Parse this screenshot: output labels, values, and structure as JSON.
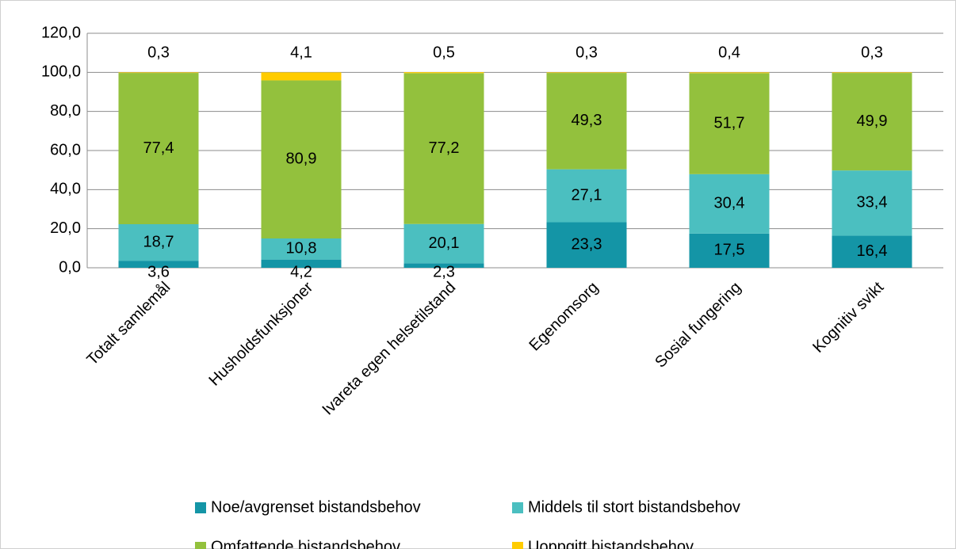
{
  "chart_data": {
    "type": "stacked_bar",
    "categories": [
      "Totalt samlemål",
      "Husholdsfunksjoner",
      "Ivareta egen helsetilstand",
      "Egenomsorg",
      "Sosial fungering",
      "Kognitiv svikt"
    ],
    "series": [
      {
        "name": "Noe/avgrenset bistandsbehov",
        "color": "#1495a6",
        "values": [
          3.6,
          4.2,
          2.3,
          23.3,
          17.5,
          16.4
        ],
        "value_labels": [
          "3,6",
          "4,2",
          "2,3",
          "23,3",
          "17,5",
          "16,4"
        ]
      },
      {
        "name": "Middels til stort bistandsbehov",
        "color": "#4bbfc0",
        "values": [
          18.7,
          10.8,
          20.1,
          27.1,
          30.4,
          33.4
        ],
        "value_labels": [
          "18,7",
          "10,8",
          "20,1",
          "27,1",
          "30,4",
          "33,4"
        ]
      },
      {
        "name": "Omfattende bistandsbehov",
        "color": "#93c13d",
        "values": [
          77.4,
          80.9,
          77.2,
          49.3,
          51.7,
          49.9
        ],
        "value_labels": [
          "77,4",
          "80,9",
          "77,2",
          "49,3",
          "51,7",
          "49,9"
        ]
      },
      {
        "name": "Uoppgitt bistandsbehov",
        "color": "#ffcc00",
        "values": [
          0.3,
          4.1,
          0.5,
          0.3,
          0.4,
          0.3
        ],
        "value_labels": [
          "0,3",
          "4,1",
          "0,5",
          "0,3",
          "0,4",
          "0,3"
        ]
      }
    ],
    "ylim": [
      0,
      120
    ],
    "yticks": [
      {
        "value": 0,
        "label": "0,0"
      },
      {
        "value": 20,
        "label": "20,0"
      },
      {
        "value": 40,
        "label": "40,0"
      },
      {
        "value": 60,
        "label": "60,0"
      },
      {
        "value": 80,
        "label": "80,0"
      },
      {
        "value": 100,
        "label": "100,0"
      },
      {
        "value": 120,
        "label": "120,0"
      }
    ],
    "grid": true,
    "legend": "bottom"
  }
}
